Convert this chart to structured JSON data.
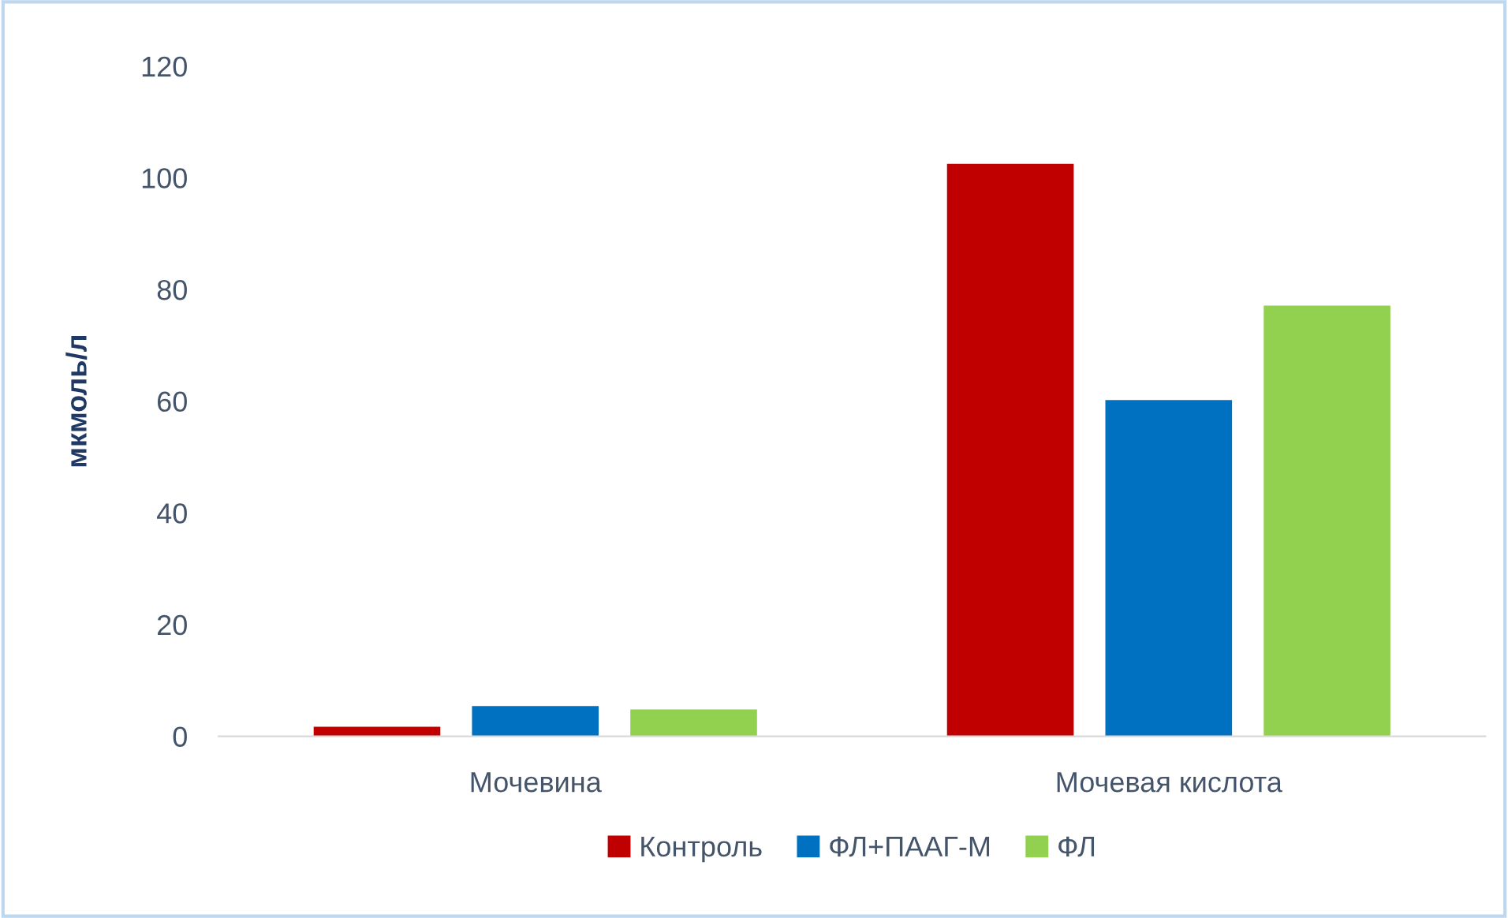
{
  "chart_data": {
    "type": "bar",
    "ylabel": "мкмоль/л",
    "categories": [
      "Мочевина",
      "Мочевая кислота"
    ],
    "series": [
      {
        "name": "Контроль",
        "color": "#c00000",
        "values": [
          1.7,
          102.5
        ]
      },
      {
        "name": "ФЛ+ПААГ-М",
        "color": "#0070c0",
        "values": [
          5.4,
          60.2
        ]
      },
      {
        "name": "ФЛ",
        "color": "#92d050",
        "values": [
          4.8,
          77.1
        ]
      }
    ],
    "ylim": [
      0,
      120
    ],
    "yticks": [
      0,
      20,
      40,
      60,
      80,
      100,
      120
    ],
    "grid": false,
    "legend": "bottom"
  }
}
